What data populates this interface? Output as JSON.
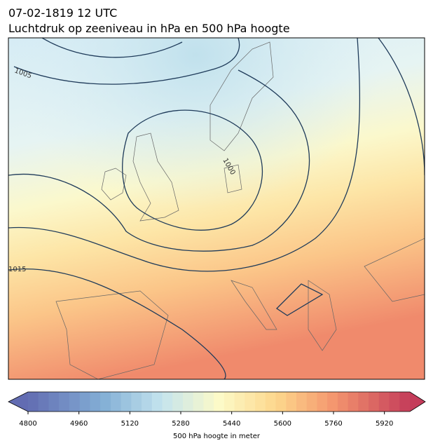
{
  "header": {
    "title": "07-02-1819 12 UTC",
    "subtitle": "Luchtdruk op zeeniveau in hPa en 500 hPa hoogte"
  },
  "map": {
    "contour_labels": [
      "1005",
      "1000",
      "1015"
    ]
  },
  "colorbar": {
    "label": "500 hPa hoogte in meter",
    "lim": [
      4800,
      6000
    ],
    "ticks": [
      4800,
      4960,
      5120,
      5280,
      5440,
      5600,
      5760,
      5920
    ]
  }
}
